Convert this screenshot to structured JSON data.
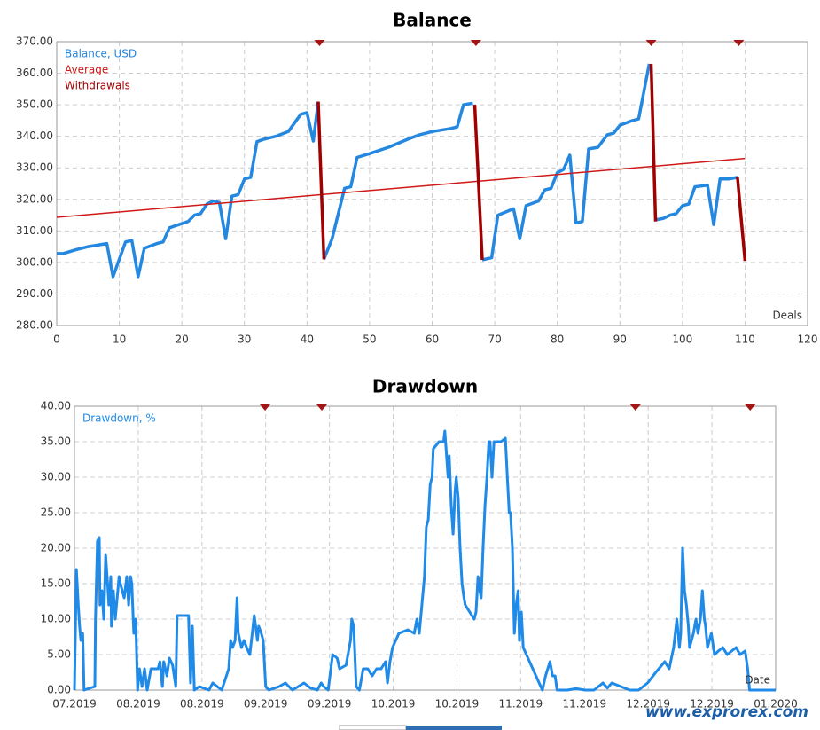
{
  "chart_data": [
    {
      "type": "line",
      "title": "Balance",
      "x_label": "Deals",
      "xlim": [
        0,
        120
      ],
      "xticks": [
        0,
        10,
        20,
        30,
        40,
        50,
        60,
        70,
        80,
        90,
        100,
        110,
        120
      ],
      "ylim": [
        280,
        370
      ],
      "yticks": [
        {
          "value": 280,
          "label": "280.00"
        },
        {
          "value": 290,
          "label": "290.00"
        },
        {
          "value": 300,
          "label": "300.00"
        },
        {
          "value": 310,
          "label": "310.00"
        },
        {
          "value": 320,
          "label": "320.00"
        },
        {
          "value": 330,
          "label": "330.00"
        },
        {
          "value": 340,
          "label": "340.00"
        },
        {
          "value": 350,
          "label": "350.00"
        },
        {
          "value": 360,
          "label": "360.00"
        },
        {
          "value": 370,
          "label": "370.00"
        }
      ],
      "grid": true,
      "markers": [
        42,
        67,
        95,
        109
      ],
      "marker_color": "#a31515",
      "series": [
        {
          "name": "Balance, USD",
          "color": "#2488e0",
          "width": 3.5,
          "x": [
            0,
            1,
            3,
            5,
            8,
            9,
            11,
            12,
            13,
            14,
            16,
            17,
            18,
            21,
            22,
            23,
            24,
            25,
            26,
            27,
            28,
            29,
            30,
            31,
            32,
            33,
            35,
            37,
            39,
            40,
            41,
            41.8,
            null,
            42.7,
            44,
            46,
            47,
            48,
            50,
            53,
            56,
            58,
            60,
            63,
            64,
            65,
            66.5,
            null,
            68,
            69.5,
            70.5,
            73,
            74,
            75,
            77,
            78,
            79,
            80,
            81,
            82,
            83,
            84,
            85,
            86.5,
            88,
            89,
            90,
            92,
            93,
            94.7,
            null,
            95.7,
            97,
            98,
            99,
            100,
            101,
            102,
            104,
            105,
            106,
            107.5,
            108.8
          ],
          "values": [
            302.8,
            302.8,
            304,
            305,
            306,
            295.5,
            306.5,
            307,
            295.5,
            304.5,
            306,
            306.5,
            311,
            313,
            315,
            315.5,
            318.5,
            319.5,
            319,
            307.5,
            321,
            321.5,
            326.5,
            327,
            338.3,
            339,
            340,
            341.5,
            347,
            347.5,
            338.5,
            351,
            null,
            301,
            307.5,
            323.5,
            324,
            333.3,
            334.5,
            336.5,
            339,
            340.5,
            341.5,
            342.5,
            343,
            350,
            350.5,
            null,
            300.8,
            301.5,
            315,
            317,
            307.5,
            318,
            319.5,
            323,
            323.5,
            328.5,
            329.5,
            334,
            312.5,
            313,
            336,
            336.5,
            340.5,
            341,
            343.5,
            345,
            345.5,
            363,
            null,
            313.5,
            314,
            315,
            315.5,
            318,
            318.5,
            324,
            324.5,
            312,
            326.5,
            326.5,
            327
          ]
        },
        {
          "name": "Average",
          "color": "#d01818",
          "width": 1.5,
          "x": [
            0,
            110
          ],
          "values": [
            314.3,
            333
          ]
        },
        {
          "name": "Withdrawals",
          "color": "#a00000",
          "width": 3.5,
          "x": [
            41.8,
            42.7,
            null,
            66.8,
            68,
            null,
            95,
            95.7,
            null,
            108.8,
            110
          ],
          "values": [
            351,
            301,
            null,
            350,
            300.8,
            null,
            363,
            313,
            null,
            327,
            300.5
          ]
        }
      ]
    },
    {
      "type": "line",
      "title": "Drawdown",
      "x_label": "Date",
      "xlim": [
        0,
        11
      ],
      "xticks": [
        {
          "value": 0,
          "label": "07.2019"
        },
        {
          "value": 1,
          "label": "08.2019"
        },
        {
          "value": 2,
          "label": "08.2019"
        },
        {
          "value": 3,
          "label": "09.2019"
        },
        {
          "value": 4,
          "label": "09.2019"
        },
        {
          "value": 5,
          "label": "10.2019"
        },
        {
          "value": 6,
          "label": "10.2019"
        },
        {
          "value": 7,
          "label": "11.2019"
        },
        {
          "value": 8,
          "label": "11.2019"
        },
        {
          "value": 9,
          "label": "12.2019"
        },
        {
          "value": 10,
          "label": "12.2019"
        },
        {
          "value": 11,
          "label": "01.2020"
        }
      ],
      "ylim": [
        0,
        40
      ],
      "yticks": [
        {
          "value": 0,
          "label": "0.00"
        },
        {
          "value": 5,
          "label": "5.00"
        },
        {
          "value": 10,
          "label": "10.00"
        },
        {
          "value": 15,
          "label": "15.00"
        },
        {
          "value": 20,
          "label": "20.00"
        },
        {
          "value": 25,
          "label": "25.00"
        },
        {
          "value": 30,
          "label": "30.00"
        },
        {
          "value": 35,
          "label": "35.00"
        },
        {
          "value": 40,
          "label": "40.00"
        }
      ],
      "grid": true,
      "markers": [
        2.99,
        3.88,
        8.8,
        10.6
      ],
      "marker_color": "#a31515",
      "series": [
        {
          "name": "Drawdown, %",
          "color": "#1f8ae8",
          "width": 3,
          "x": [
            0,
            0.03,
            0.06,
            0.08,
            0.1,
            0.13,
            0.15,
            0.32,
            0.33,
            0.36,
            0.39,
            0.4,
            0.43,
            0.46,
            0.49,
            0.52,
            0.54,
            0.57,
            0.58,
            0.61,
            0.64,
            0.67,
            0.7,
            0.72,
            0.78,
            0.82,
            0.85,
            0.88,
            0.9,
            0.93,
            0.96,
            0.99,
            1.02,
            1.06,
            1.1,
            1.14,
            1.2,
            1.31,
            1.34,
            1.38,
            1.4,
            1.45,
            1.49,
            1.54,
            1.59,
            1.61,
            1.71,
            1.79,
            1.82,
            1.85,
            1.88,
            1.96,
            2.11,
            2.17,
            2.31,
            2.42,
            2.45,
            2.48,
            2.52,
            2.55,
            2.57,
            2.62,
            2.66,
            2.7,
            2.75,
            2.82,
            2.87,
            2.89,
            2.93,
            2.96,
            3.0,
            3.05,
            3.21,
            3.31,
            3.42,
            3.6,
            3.7,
            3.81,
            3.87,
            3.91,
            3.98,
            4.05,
            4.12,
            4.16,
            4.26,
            4.33,
            4.35,
            4.38,
            4.42,
            4.47,
            4.53,
            4.6,
            4.67,
            4.74,
            4.81,
            4.88,
            4.91,
            4.95,
            4.99,
            5.09,
            5.23,
            5.33,
            5.37,
            5.41,
            5.45,
            5.49,
            5.52,
            5.55,
            5.58,
            5.61,
            5.63,
            5.72,
            5.79,
            5.81,
            5.83,
            5.86,
            5.88,
            5.91,
            5.94,
            5.97,
            5.99,
            6.02,
            6.05,
            6.08,
            6.11,
            6.13,
            6.2,
            6.27,
            6.3,
            6.33,
            6.36,
            6.38,
            6.41,
            6.44,
            6.47,
            6.5,
            6.52,
            6.55,
            6.58,
            6.62,
            6.69,
            6.76,
            6.79,
            6.82,
            6.84,
            6.87,
            6.9,
            6.93,
            6.96,
            6.98,
            7.01,
            7.04,
            7.34,
            7.39,
            7.46,
            7.5,
            7.54,
            7.57,
            7.73,
            7.87,
            8.01,
            8.15,
            8.29,
            8.36,
            8.43,
            8.57,
            8.71,
            8.85,
            8.99,
            9.12,
            9.26,
            9.33,
            9.4,
            9.45,
            9.49,
            9.51,
            9.54,
            9.57,
            9.6,
            9.63,
            9.65,
            9.71,
            9.75,
            9.78,
            9.82,
            9.85,
            9.88,
            9.9,
            9.93,
            9.99,
            10.04,
            10.1,
            10.17,
            10.24,
            10.31,
            10.38,
            10.44,
            10.52,
            10.56,
            10.59,
            11.0
          ],
          "values": [
            0,
            17,
            12,
            9,
            7,
            8,
            0,
            0.5,
            10,
            21,
            21.5,
            12,
            14,
            10,
            19,
            15,
            12,
            16,
            9,
            14,
            10,
            13,
            16,
            15,
            13,
            16,
            12,
            16,
            15,
            8,
            10,
            0,
            3,
            0.5,
            3,
            0,
            3,
            3,
            4,
            0.5,
            4,
            2,
            4.5,
            3.5,
            0.5,
            10.5,
            10.5,
            10.5,
            1,
            9,
            0,
            0.5,
            0,
            1,
            0,
            3,
            7,
            6,
            7,
            13,
            8,
            6,
            7,
            6,
            5,
            10.5,
            7,
            9,
            8,
            7,
            0.5,
            0,
            0.5,
            1,
            0,
            1,
            0.3,
            0,
            1,
            0.5,
            0,
            5,
            4.5,
            3,
            3.5,
            7,
            10,
            9,
            0.5,
            0,
            3,
            3,
            2,
            3,
            3,
            4,
            1,
            4,
            6,
            8,
            8.5,
            8,
            10,
            8,
            12,
            16,
            23,
            24,
            29,
            30,
            34,
            35,
            35,
            36.5,
            34,
            30,
            33,
            26,
            22,
            28,
            30,
            27,
            20,
            15,
            13,
            12,
            11,
            10,
            11,
            16,
            14,
            13,
            20,
            26,
            30,
            35,
            35,
            30,
            35,
            35,
            35,
            35.5,
            30,
            25,
            25,
            20,
            8,
            12,
            14,
            7,
            11,
            6,
            0,
            2,
            4,
            2,
            2,
            0,
            0,
            0.2,
            0,
            0,
            1,
            0.3,
            1,
            0.5,
            0,
            0,
            1,
            2.5,
            4,
            3,
            6,
            10,
            6,
            8,
            20,
            14,
            12,
            9,
            6,
            8,
            10,
            8,
            10,
            14,
            10,
            9,
            6,
            8,
            5,
            5.5,
            6,
            5,
            5.5,
            6,
            5,
            5.5,
            3,
            0,
            0
          ]
        }
      ]
    }
  ],
  "watermark": "www.exprorex.com"
}
